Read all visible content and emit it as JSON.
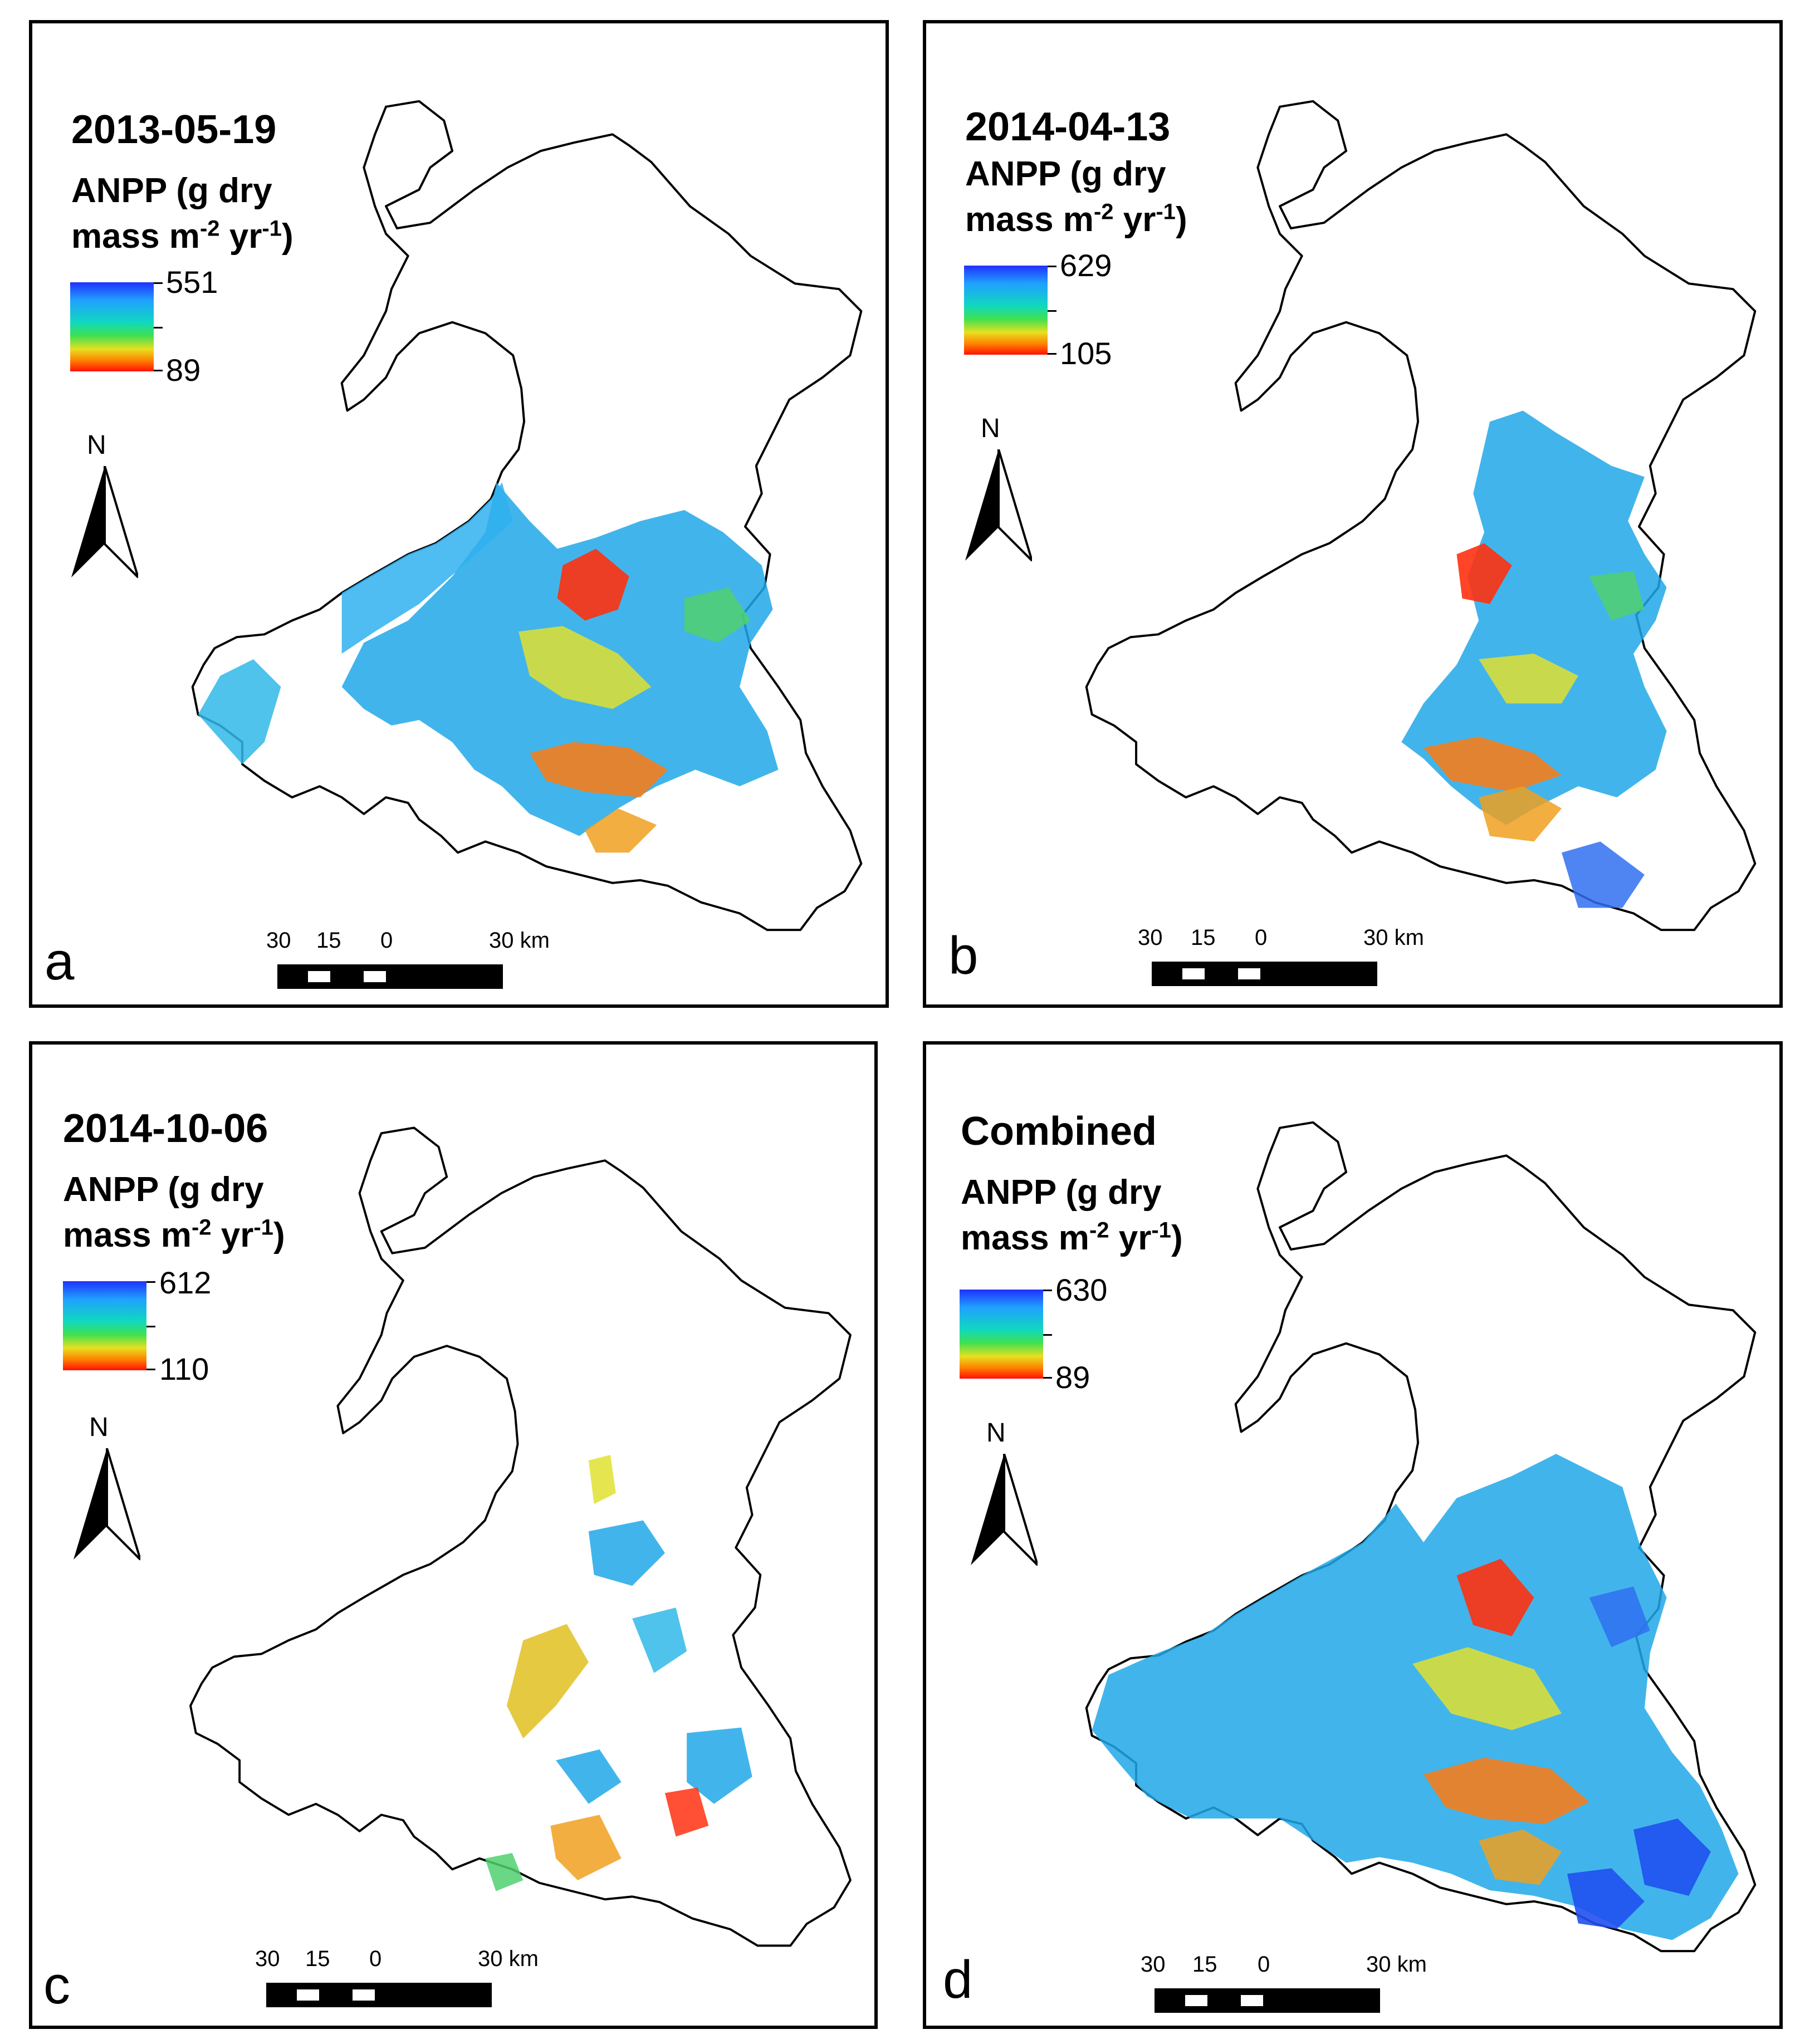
{
  "figure": {
    "panels": [
      {
        "letter": "a",
        "date": "2013-05-19",
        "max": "551",
        "min": "89"
      },
      {
        "letter": "b",
        "date": "2014-04-13",
        "max": "629",
        "min": "105"
      },
      {
        "letter": "c",
        "date": "2014-10-06",
        "max": "612",
        "min": "110"
      },
      {
        "letter": "d",
        "date": "Combined",
        "max": "630",
        "min": "89"
      }
    ],
    "legend": {
      "line1": "ANPP (g dry",
      "line2_a": "mass m",
      "sup1": "-2",
      "line2_b": " yr",
      "sup2": "-1",
      "line2_c": ")"
    },
    "north_label": "N",
    "scale": {
      "l30": "30",
      "l15": "15",
      "l0": "0",
      "r30": "30 km"
    }
  },
  "colors": {
    "blue": "#2040ff",
    "cyan": "#10c8e0",
    "green": "#40d860",
    "yellow": "#e0e020",
    "orange": "#ff8000",
    "red": "#ff1000"
  }
}
